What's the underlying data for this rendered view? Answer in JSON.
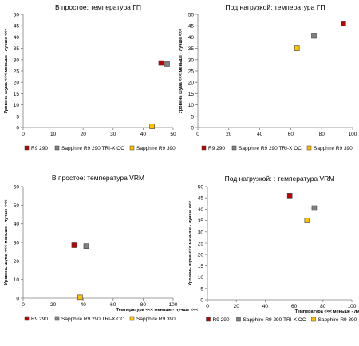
{
  "chart_data": [
    {
      "type": "scatter",
      "title": "В простое: температура ГП",
      "xlabel": "",
      "ylabel": "Уровень шума <<< меньше - лучше <<<",
      "xlim": [
        0,
        50
      ],
      "ylim": [
        0,
        50
      ],
      "xticks": [
        0,
        10,
        20,
        30,
        40,
        50
      ],
      "yticks": [
        0,
        5,
        10,
        15,
        20,
        25,
        30,
        35,
        40,
        45,
        50
      ],
      "series": [
        {
          "name": "R9 290",
          "color": "#c00000",
          "x": [
            46
          ],
          "y": [
            28.5
          ]
        },
        {
          "name": "Sapphire R9 290 TRI-X OC",
          "color": "#808080",
          "x": [
            48
          ],
          "y": [
            28
          ]
        },
        {
          "name": "Sapphire R9 390",
          "color": "#ffc000",
          "x": [
            43
          ],
          "y": [
            0.5
          ]
        }
      ]
    },
    {
      "type": "scatter",
      "title": "Под нагрузкой: температура ГП",
      "xlabel": "",
      "ylabel": "Уровень шума <<< меньше - лучше <<<",
      "xlim": [
        0,
        100
      ],
      "ylim": [
        0,
        50
      ],
      "xticks": [
        0,
        20,
        40,
        60,
        80,
        100
      ],
      "yticks": [
        0,
        5,
        10,
        15,
        20,
        25,
        30,
        35,
        40,
        45,
        50
      ],
      "series": [
        {
          "name": "R9 290",
          "color": "#c00000",
          "x": [
            94
          ],
          "y": [
            46
          ]
        },
        {
          "name": "Sapphire R9 290 TRI-X OC",
          "color": "#808080",
          "x": [
            75
          ],
          "y": [
            40.5
          ]
        },
        {
          "name": "Sapphire R9 390",
          "color": "#ffc000",
          "x": [
            64
          ],
          "y": [
            35
          ]
        }
      ]
    },
    {
      "type": "scatter",
      "title": "В простое: температура VRM",
      "xlabel": "Температура <<< меньше - лучше <<<",
      "ylabel": "Уровень шума <<< меньше - лучше <<<",
      "xlim": [
        0,
        100
      ],
      "ylim": [
        0,
        60
      ],
      "xticks": [
        0,
        20,
        40,
        60,
        80,
        100
      ],
      "yticks": [
        0,
        10,
        20,
        30,
        40,
        50,
        60
      ],
      "series": [
        {
          "name": "R9 290",
          "color": "#c00000",
          "x": [
            34
          ],
          "y": [
            28.5
          ]
        },
        {
          "name": "Sapphire R9 290 TRI-X OC",
          "color": "#808080",
          "x": [
            42
          ],
          "y": [
            28
          ]
        },
        {
          "name": "Sapphire R9 390",
          "color": "#ffc000",
          "x": [
            38
          ],
          "y": [
            0.5
          ]
        }
      ]
    },
    {
      "type": "scatter",
      "title": "Под нагрузкой: : температура VRM",
      "xlabel": "Температура <<< меньше - лучше <<<",
      "ylabel": "Уровень шума <<< меньше - лучше <<<",
      "xlim": [
        0,
        100
      ],
      "ylim": [
        0,
        50
      ],
      "xticks": [
        0,
        20,
        40,
        60,
        80,
        100
      ],
      "yticks": [
        0,
        5,
        10,
        15,
        20,
        25,
        30,
        35,
        40,
        45,
        50
      ],
      "series": [
        {
          "name": "R9 290",
          "color": "#c00000",
          "x": [
            57
          ],
          "y": [
            46
          ]
        },
        {
          "name": "Sapphire R9 290 TRI-X OC",
          "color": "#808080",
          "x": [
            74
          ],
          "y": [
            40.5
          ]
        },
        {
          "name": "Sapphire R9 390",
          "color": "#ffc000",
          "x": [
            69
          ],
          "y": [
            35
          ]
        }
      ]
    }
  ]
}
